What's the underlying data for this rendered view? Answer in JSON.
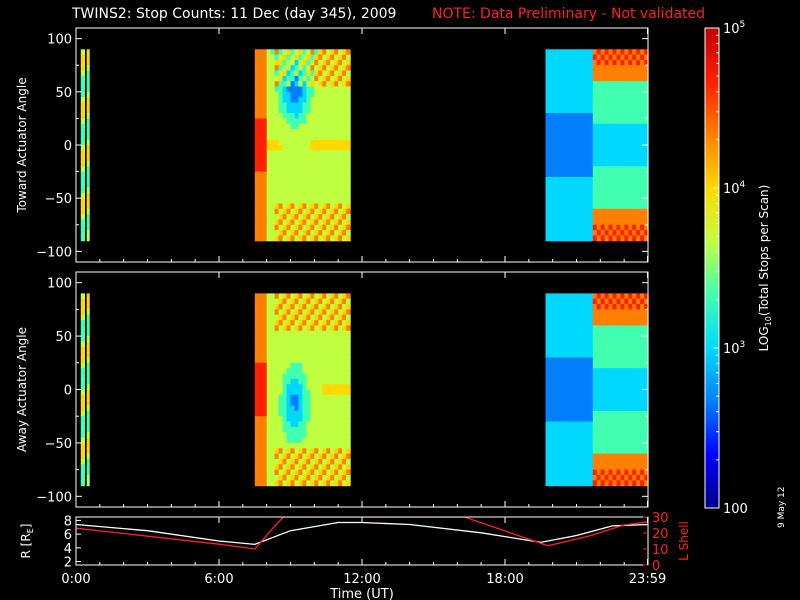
{
  "title": {
    "main": "TWINS2: Stop Counts: 11 Dec (day 345), 2009",
    "note": "NOTE: Data Preliminary - Not validated"
  },
  "colorbar": {
    "label_prefix": "LOG",
    "label_sub": "10",
    "label_suffix": "(Total Stops per Scan)",
    "ticks": [
      {
        "base": "10",
        "exp": "5",
        "value": 100000
      },
      {
        "base": "10",
        "exp": "4",
        "value": 10000
      },
      {
        "base": "10",
        "exp": "3",
        "value": 1000
      },
      {
        "base": "100",
        "exp": "",
        "value": 100
      }
    ],
    "colors": [
      "#00008a",
      "#0000ff",
      "#0080ff",
      "#00d8ff",
      "#40ffb0",
      "#c0ff40",
      "#ffd800",
      "#ff8000",
      "#ff2000",
      "#c00000"
    ]
  },
  "date_stamp": "9 May 12",
  "x_axis": {
    "label": "Time (UT)",
    "ticks": [
      {
        "label": "0:00",
        "hour": 0
      },
      {
        "label": "6:00",
        "hour": 6
      },
      {
        "label": "12:00",
        "hour": 12
      },
      {
        "label": "18:00",
        "hour": 18
      },
      {
        "label": "23:59",
        "hour": 23.98
      }
    ]
  },
  "chart_data": [
    {
      "type": "heatmap",
      "panel": "toward",
      "ylabel": "Toward Actuator Angle",
      "ylim": [
        -110,
        110
      ],
      "yticks": [
        100,
        50,
        0,
        -50,
        -100
      ],
      "data_intervals_hours": [
        [
          0.2,
          0.35
        ],
        [
          0.45,
          0.55
        ],
        [
          7.5,
          11.5
        ],
        [
          19.7,
          24.0
        ]
      ],
      "log10_counts_range": [
        2,
        5
      ]
    },
    {
      "type": "heatmap",
      "panel": "away",
      "ylabel": "Away Actuator Angle",
      "ylim": [
        -110,
        110
      ],
      "yticks": [
        100,
        50,
        0,
        -50,
        -100
      ],
      "data_intervals_hours": [
        [
          0.2,
          0.35
        ],
        [
          0.45,
          0.55
        ],
        [
          7.5,
          11.5
        ],
        [
          19.7,
          24.0
        ]
      ],
      "log10_counts_range": [
        2,
        5
      ]
    },
    {
      "type": "line",
      "panel": "orbit",
      "ylabel": "R [R",
      "ylabel_sub": "E",
      "ylabel_end": "]",
      "y_left_ticks": [
        "8",
        "6",
        "4",
        "2"
      ],
      "y_left_lim": [
        1.5,
        8.5
      ],
      "y2label": "L Shell",
      "y_right_ticks": [
        "30",
        "20",
        "10",
        "0"
      ],
      "y_right_lim": [
        0,
        30
      ],
      "series": [
        {
          "color": "#ffffff",
          "x": [
            0,
            3,
            6,
            7.5,
            9,
            11,
            12,
            14,
            17,
            19.5,
            21,
            22.5,
            24
          ],
          "y": [
            7.4,
            6.5,
            5.0,
            4.5,
            6.5,
            7.7,
            7.7,
            7.4,
            6.2,
            4.8,
            5.8,
            7.2,
            7.4
          ]
        },
        {
          "color": "#ff2020",
          "x": [
            0,
            3,
            6,
            7.5,
            8.2,
            8.7,
            16.3,
            19.8,
            21.5,
            23,
            24
          ],
          "y": [
            23,
            18,
            13,
            10,
            22,
            30,
            30,
            12,
            18,
            25,
            27
          ]
        }
      ]
    }
  ]
}
